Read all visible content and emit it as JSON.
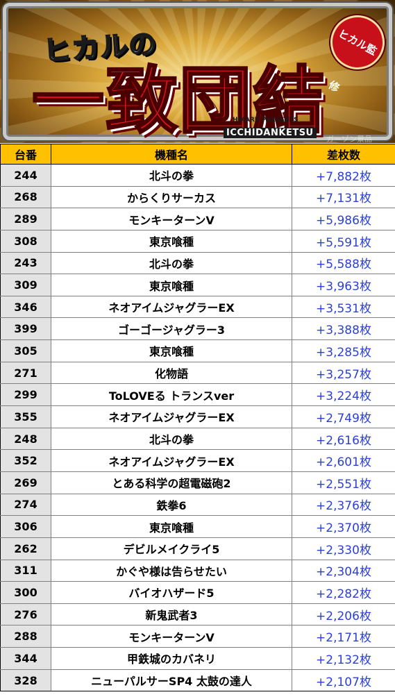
{
  "banner": {
    "sub_title": "ヒカルの",
    "main_title": "一致団結",
    "badge": "ヒカル監修",
    "en_small": "HIKARU PRESENTS",
    "en_title": "ICCHIDANKETSU",
    "watermark": "ガーゾン景品"
  },
  "table": {
    "headers": [
      "台番",
      "機種名",
      "差枚数"
    ],
    "rows": [
      {
        "num": "244",
        "name": "北斗の拳",
        "diff": "+7,882枚"
      },
      {
        "num": "268",
        "name": "からくりサーカス",
        "diff": "+7,131枚"
      },
      {
        "num": "289",
        "name": "モンキーターンV",
        "diff": "+5,986枚"
      },
      {
        "num": "308",
        "name": "東京喰種",
        "diff": "+5,591枚"
      },
      {
        "num": "243",
        "name": "北斗の拳",
        "diff": "+5,588枚"
      },
      {
        "num": "309",
        "name": "東京喰種",
        "diff": "+3,963枚"
      },
      {
        "num": "346",
        "name": "ネオアイムジャグラーEX",
        "diff": "+3,531枚"
      },
      {
        "num": "399",
        "name": "ゴーゴージャグラー3",
        "diff": "+3,388枚"
      },
      {
        "num": "305",
        "name": "東京喰種",
        "diff": "+3,285枚"
      },
      {
        "num": "271",
        "name": "化物語",
        "diff": "+3,257枚"
      },
      {
        "num": "299",
        "name": "ToLOVEる トランスver",
        "diff": "+3,224枚"
      },
      {
        "num": "355",
        "name": "ネオアイムジャグラーEX",
        "diff": "+2,749枚"
      },
      {
        "num": "248",
        "name": "北斗の拳",
        "diff": "+2,616枚"
      },
      {
        "num": "352",
        "name": "ネオアイムジャグラーEX",
        "diff": "+2,601枚"
      },
      {
        "num": "269",
        "name": "とある科学の超電磁砲2",
        "diff": "+2,551枚"
      },
      {
        "num": "274",
        "name": "鉄拳6",
        "diff": "+2,376枚"
      },
      {
        "num": "306",
        "name": "東京喰種",
        "diff": "+2,370枚"
      },
      {
        "num": "262",
        "name": "デビルメイクライ5",
        "diff": "+2,330枚"
      },
      {
        "num": "311",
        "name": "かぐや様は告らせたい",
        "diff": "+2,304枚"
      },
      {
        "num": "300",
        "name": "バイオハザード5",
        "diff": "+2,282枚"
      },
      {
        "num": "276",
        "name": "新鬼武者3",
        "diff": "+2,206枚"
      },
      {
        "num": "288",
        "name": "モンキーターンV",
        "diff": "+2,171枚"
      },
      {
        "num": "344",
        "name": "甲鉄城のカバネリ",
        "diff": "+2,132枚"
      },
      {
        "num": "328",
        "name": "ニューパルサーSP4 太鼓の達人",
        "diff": "+2,107枚"
      }
    ]
  }
}
